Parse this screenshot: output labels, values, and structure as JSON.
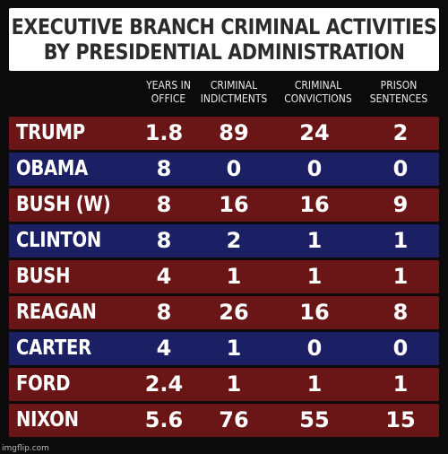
{
  "title": {
    "line1": "EXECUTIVE BRANCH CRIMINAL ACTIVITIES",
    "line2": "BY PRESIDENTIAL ADMINISTRATION"
  },
  "headers": [
    {
      "line1": "YEARS IN",
      "line2": "OFFICE"
    },
    {
      "line1": "CRIMINAL",
      "line2": "INDICTMENTS"
    },
    {
      "line1": "CRIMINAL",
      "line2": "CONVICTIONS"
    },
    {
      "line1": "PRISON",
      "line2": "SENTENCES"
    }
  ],
  "rows": [
    {
      "name": "TRUMP",
      "years": "1.8",
      "indictments": "89",
      "convictions": "24",
      "sentences": "2",
      "color": "red"
    },
    {
      "name": "OBAMA",
      "years": "8",
      "indictments": "0",
      "convictions": "0",
      "sentences": "0",
      "color": "blue"
    },
    {
      "name": "BUSH (W)",
      "years": "8",
      "indictments": "16",
      "convictions": "16",
      "sentences": "9",
      "color": "red"
    },
    {
      "name": "CLINTON",
      "years": "8",
      "indictments": "2",
      "convictions": "1",
      "sentences": "1",
      "color": "blue"
    },
    {
      "name": "BUSH",
      "years": "4",
      "indictments": "1",
      "convictions": "1",
      "sentences": "1",
      "color": "red"
    },
    {
      "name": "REAGAN",
      "years": "8",
      "indictments": "26",
      "convictions": "16",
      "sentences": "8",
      "color": "red"
    },
    {
      "name": "CARTER",
      "years": "4",
      "indictments": "1",
      "convictions": "0",
      "sentences": "0",
      "color": "blue"
    },
    {
      "name": "FORD",
      "years": "2.4",
      "indictments": "1",
      "convictions": "1",
      "sentences": "1",
      "color": "red"
    },
    {
      "name": "NIXON",
      "years": "5.6",
      "indictments": "76",
      "convictions": "55",
      "sentences": "15",
      "color": "red"
    }
  ],
  "colors": {
    "red_row": "#6b1616",
    "blue_row": "#1b1f63",
    "background": "#0b0b0b"
  },
  "watermark": "imgflip.com"
}
